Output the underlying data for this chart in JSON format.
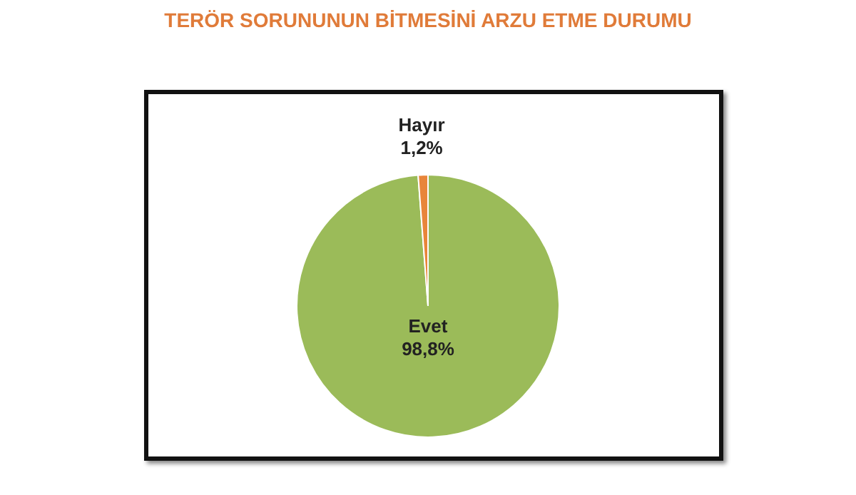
{
  "chart_data": {
    "type": "pie",
    "title": "TERÖR SORUNUNUN BİTMESİNİ ARZU ETME DURUMU",
    "categories": [
      "Evet",
      "Hayır"
    ],
    "values": [
      98.8,
      1.2
    ],
    "colors": [
      "#9bbb59",
      "#e8853a"
    ],
    "value_labels": [
      "98,8%",
      "1,2%"
    ],
    "legend": false
  }
}
